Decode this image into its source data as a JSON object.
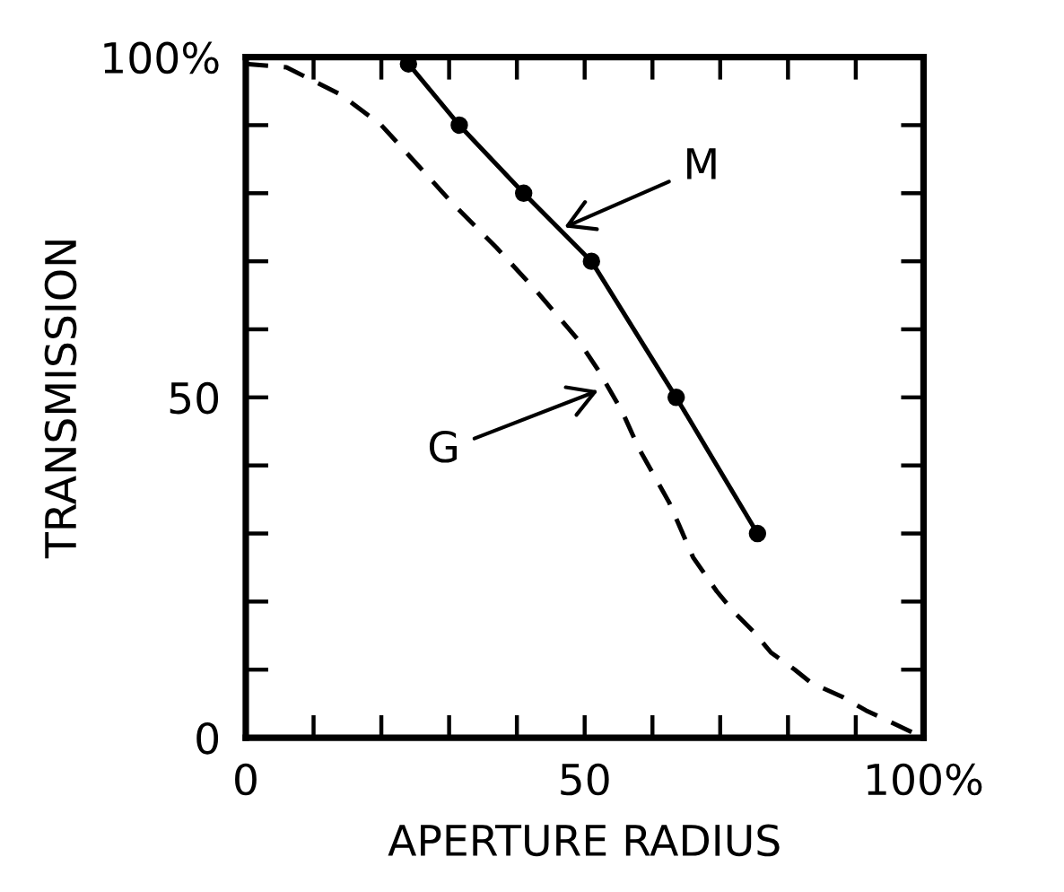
{
  "chart_data": {
    "type": "line",
    "xlabel": "APERTURE RADIUS",
    "ylabel": "TRANSMISSION",
    "xlim": [
      0,
      100
    ],
    "ylim": [
      0,
      100
    ],
    "xticks": [
      0,
      {
        "value": 10,
        "label": null
      },
      {
        "value": 20,
        "label": null
      },
      {
        "value": 30,
        "label": null
      },
      {
        "value": 40,
        "label": null
      },
      50,
      {
        "value": 60,
        "label": null
      },
      {
        "value": 70,
        "label": null
      },
      {
        "value": 80,
        "label": null
      },
      {
        "value": 90,
        "label": null
      },
      {
        "value": 100,
        "label": "100%"
      }
    ],
    "yticks": [
      0,
      {
        "value": 10,
        "label": null
      },
      {
        "value": 20,
        "label": null
      },
      {
        "value": 30,
        "label": null
      },
      {
        "value": 40,
        "label": null
      },
      50,
      {
        "value": 60,
        "label": null
      },
      {
        "value": 70,
        "label": null
      },
      {
        "value": 80,
        "label": null
      },
      {
        "value": 90,
        "label": null
      },
      {
        "value": 100,
        "label": "100%"
      }
    ],
    "series": [
      {
        "color": "#000000",
        "marker": "circle",
        "line_style": "solid",
        "x": [
          24,
          31.5,
          41,
          51,
          63.5,
          75.5
        ],
        "values": [
          99,
          90,
          80,
          70,
          50,
          30
        ]
      },
      {
        "color": "#000000",
        "marker": "none",
        "line_style": "dashed",
        "x": [
          0,
          6,
          14,
          20,
          25.5,
          30.5,
          37,
          43,
          49,
          52,
          55.5,
          58,
          62.5,
          66,
          69.5,
          72,
          75,
          77.5,
          81,
          83.5,
          88,
          91.5,
          100
        ],
        "values": [
          99,
          98.5,
          94.5,
          90,
          84,
          78.5,
          72,
          65.5,
          58.5,
          54,
          48,
          42.5,
          34.5,
          26.5,
          21.5,
          18.5,
          15.5,
          12.5,
          10,
          8,
          6,
          4,
          0
        ]
      }
    ],
    "annotations": [
      {
        "text": "M",
        "x": 47,
        "y": 75
      },
      {
        "text": "G",
        "x": 52,
        "y": 51
      }
    ]
  }
}
